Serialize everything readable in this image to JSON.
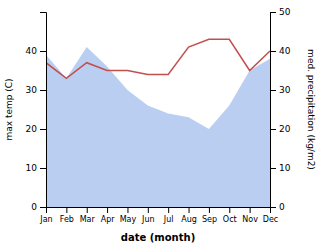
{
  "chart_data": {
    "type": "line",
    "xlabel": "date (month)",
    "ylabel": "max temp (C)",
    "y2label": "med. precipitation (kg/m2)",
    "categories": [
      "Jan",
      "Feb",
      "Mar",
      "Apr",
      "May",
      "Jun",
      "Jul",
      "Aug",
      "Sep",
      "Oct",
      "Nov",
      "Dec"
    ],
    "series": [
      {
        "type": "area",
        "color": "#aec6f0",
        "values": [
          39,
          33,
          41,
          36,
          30,
          26,
          24,
          23,
          20,
          26,
          35,
          38
        ]
      },
      {
        "type": "line",
        "color": "#c0504d",
        "axis": "y2",
        "values": [
          37,
          33,
          37,
          35,
          35,
          34,
          34,
          41,
          43,
          43,
          35,
          40
        ]
      }
    ],
    "ylim": [
      0,
      50
    ],
    "yticks": [
      0,
      10,
      20,
      30,
      40
    ],
    "y2lim": [
      0,
      50
    ],
    "y2ticks": [
      0,
      10,
      20,
      30,
      40,
      50
    ]
  }
}
